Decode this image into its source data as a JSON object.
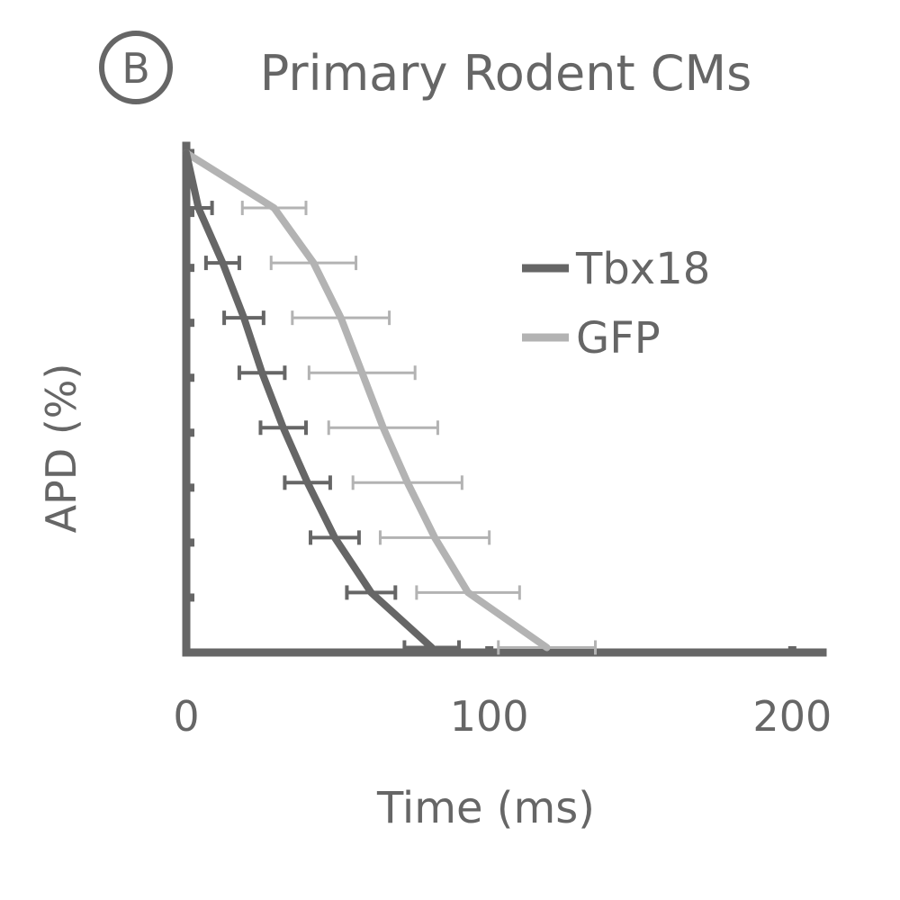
{
  "panel": {
    "label": "B"
  },
  "chart_data": {
    "type": "line",
    "title": "Primary Rodent CMs",
    "xlabel": "Time (ms)",
    "ylabel": "APD (%)",
    "xlim": [
      0,
      210
    ],
    "ylim": [
      0,
      100
    ],
    "xticks": [
      "0",
      "100",
      "200"
    ],
    "xtick_values": [
      0,
      100,
      200
    ],
    "ytick_values": [
      0,
      11,
      22,
      33,
      44,
      55,
      66,
      77,
      88,
      100
    ],
    "grid": false,
    "legend": "right",
    "colors": {
      "Tbx18": "#666666",
      "GFP": "#b3b3b3",
      "axis": "#666666",
      "text": "#666666"
    },
    "series": [
      {
        "name": "Tbx18",
        "points": [
          {
            "x": 0,
            "y": 100
          },
          {
            "x": 4,
            "y": 89,
            "err": 9
          },
          {
            "x": 12,
            "y": 78,
            "err": 11
          },
          {
            "x": 19,
            "y": 67,
            "err": 13
          },
          {
            "x": 25,
            "y": 56,
            "err": 15
          },
          {
            "x": 32,
            "y": 45,
            "err": 15
          },
          {
            "x": 40,
            "y": 34,
            "err": 15
          },
          {
            "x": 49,
            "y": 23,
            "err": 16
          },
          {
            "x": 61,
            "y": 12,
            "err": 16
          },
          {
            "x": 81,
            "y": 1,
            "err": 18
          }
        ]
      },
      {
        "name": "GFP",
        "points": [
          {
            "x": 0,
            "y": 100
          },
          {
            "x": 29,
            "y": 89,
            "err": 21
          },
          {
            "x": 42,
            "y": 78,
            "err": 28
          },
          {
            "x": 51,
            "y": 67,
            "err": 32
          },
          {
            "x": 58,
            "y": 56,
            "err": 35
          },
          {
            "x": 65,
            "y": 45,
            "err": 36
          },
          {
            "x": 73,
            "y": 34,
            "err": 36
          },
          {
            "x": 82,
            "y": 23,
            "err": 36
          },
          {
            "x": 93,
            "y": 12,
            "err": 34
          },
          {
            "x": 119,
            "y": 1,
            "err": 32
          }
        ]
      }
    ]
  }
}
